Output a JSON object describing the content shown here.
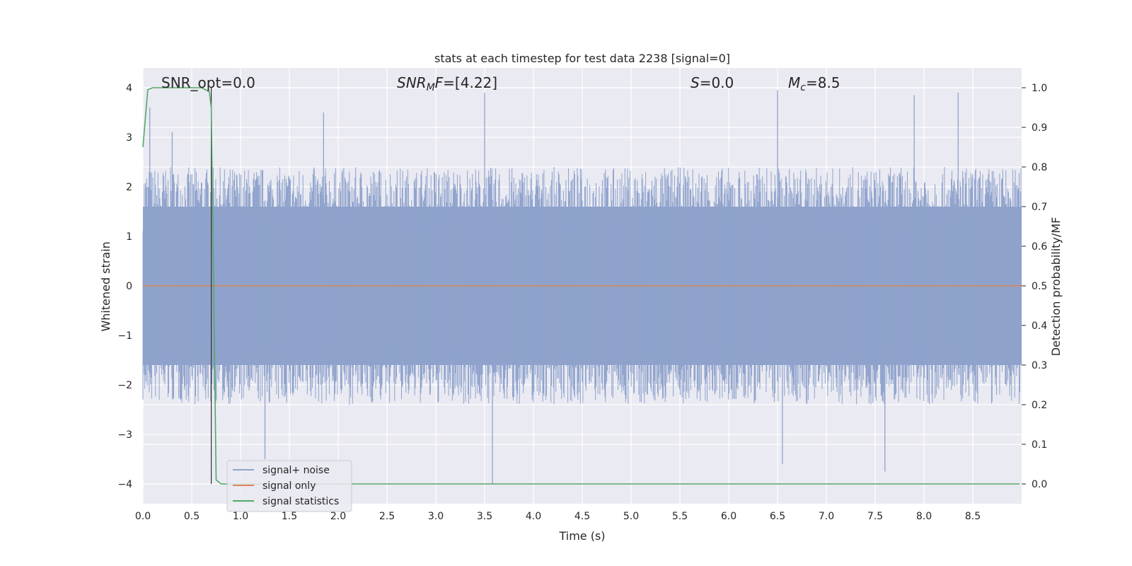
{
  "chart_data": {
    "type": "line",
    "title": "stats at each timestep for test data 2238 [signal=0]",
    "xlabel": "Time (s)",
    "ylabel": "Whitened strain",
    "ylabel_right": "Detection probability/MF",
    "xlim": [
      0.0,
      9.0
    ],
    "ylim": [
      -4.4,
      4.4
    ],
    "ylim_right": [
      -0.05,
      1.05
    ],
    "x_ticks": [
      "0.0",
      "0.5",
      "1.0",
      "1.5",
      "2.0",
      "2.5",
      "3.0",
      "3.5",
      "4.0",
      "4.5",
      "5.0",
      "5.5",
      "6.0",
      "6.5",
      "7.0",
      "7.5",
      "8.0",
      "8.5"
    ],
    "y_ticks": [
      "4",
      "3",
      "2",
      "1",
      "0",
      "−1",
      "−2",
      "−3",
      "−4"
    ],
    "y_ticks_right": [
      "1.0",
      "0.9",
      "0.8",
      "0.7",
      "0.6",
      "0.5",
      "0.4",
      "0.3",
      "0.2",
      "0.1",
      "0.0"
    ],
    "grid": true,
    "legend_position": "lower-left",
    "annotations": {
      "snr_opt": "SNR_opt=0.0",
      "snr_mf_main": "SNR",
      "snr_mf_sub": "M",
      "snr_mf_tail": "F",
      "snr_mf_value": "=[4.22]",
      "s_symbol": "S",
      "s_value": "=0.0",
      "mc_symbol": "M",
      "mc_sub": "c",
      "mc_value": "=8.5"
    },
    "vline_x": 0.7,
    "series": [
      {
        "name": "signal+ noise",
        "color": "#8ea2cc",
        "kind": "noise_envelope",
        "envelope_upper_approx": 2.0,
        "envelope_lower_approx": -2.0,
        "peaks": [
          [
            0.07,
            3.6
          ],
          [
            0.3,
            3.1
          ],
          [
            1.85,
            3.5
          ],
          [
            3.5,
            3.9
          ],
          [
            6.5,
            3.95
          ],
          [
            7.9,
            3.85
          ],
          [
            8.35,
            3.9
          ],
          [
            1.25,
            -3.5
          ],
          [
            3.58,
            -4.0
          ],
          [
            6.55,
            -3.6
          ],
          [
            7.6,
            -3.75
          ]
        ]
      },
      {
        "name": "signal only",
        "color": "#dd8452",
        "x": [
          0.0,
          9.0
        ],
        "y": [
          0.0,
          0.0
        ]
      },
      {
        "name": "signal statistics",
        "color": "#55a868",
        "axis": "right",
        "x": [
          0.0,
          0.05,
          0.1,
          0.2,
          0.3,
          0.4,
          0.5,
          0.6,
          0.68,
          0.7,
          0.75,
          0.8,
          0.85,
          1.0,
          2.0,
          3.0,
          4.0,
          5.0,
          6.0,
          7.0,
          8.0,
          8.98
        ],
        "y": [
          0.85,
          0.995,
          1.0,
          1.0,
          1.0,
          1.0,
          1.0,
          1.0,
          0.99,
          0.95,
          0.01,
          0.0,
          0.0,
          0.0,
          0.0,
          0.0,
          0.0,
          0.0,
          0.0,
          0.0,
          0.0,
          0.0
        ]
      }
    ]
  }
}
